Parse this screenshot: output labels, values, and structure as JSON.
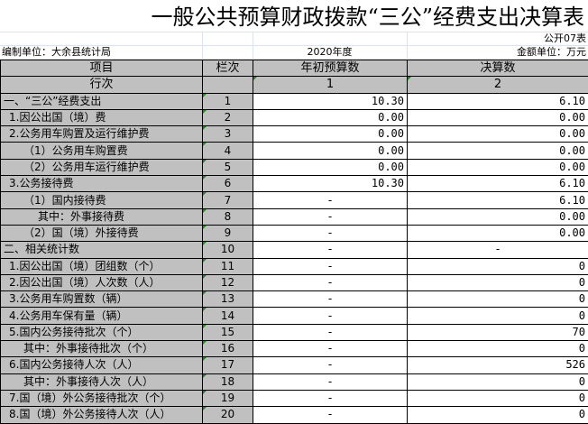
{
  "title": "一般公共预算财政拨款“三公”经费支出决算表",
  "form_code": "公开07表",
  "unit_label": "编制单位：大余县统计局",
  "year": "2020年度",
  "amount_unit": "金额单位：万元",
  "headers": {
    "item": "项目",
    "col": "栏次",
    "budget": "年初预算数",
    "final": "决算数"
  },
  "row_index": {
    "label": "行次",
    "budget": "1",
    "final": "2"
  },
  "rows": [
    {
      "item": "一、“三公”经费支出",
      "no": "1",
      "budget": "10.30",
      "final": "6.10"
    },
    {
      "item": "1.因公出国（境）费",
      "no": "2",
      "budget": "0.00",
      "final": "0.00"
    },
    {
      "item": "2.公务用车购置及运行维护费",
      "no": "3",
      "budget": "0.00",
      "final": "0.00"
    },
    {
      "item": "（1）公务用车购置费",
      "no": "4",
      "budget": "0.00",
      "final": "0.00"
    },
    {
      "item": "（2）公务用车运行维护费",
      "no": "5",
      "budget": "0.00",
      "final": "0.00"
    },
    {
      "item": "3.公务接待费",
      "no": "6",
      "budget": "10.30",
      "final": "6.10"
    },
    {
      "item": "（1）国内接待费",
      "no": "7",
      "budget": "-",
      "final": "6.10"
    },
    {
      "item": "其中：外事接待费",
      "no": "8",
      "budget": "-",
      "final": "0.00"
    },
    {
      "item": "（2）国（境）外接待费",
      "no": "9",
      "budget": "-",
      "final": "0.00"
    },
    {
      "item": "二、相关统计数",
      "no": "10",
      "budget": "-",
      "final": "-"
    },
    {
      "item": "1.因公出国（境）团组数（个）",
      "no": "11",
      "budget": "-",
      "final": "0"
    },
    {
      "item": "2.因公出国（境）人次数（人）",
      "no": "12",
      "budget": "-",
      "final": "0"
    },
    {
      "item": "3.公务用车购置数（辆）",
      "no": "13",
      "budget": "-",
      "final": "0"
    },
    {
      "item": "4.公务用车保有量（辆）",
      "no": "14",
      "budget": "-",
      "final": "0"
    },
    {
      "item": "5.国内公务接待批次（个）",
      "no": "15",
      "budget": "-",
      "final": "70"
    },
    {
      "item": "其中：外事接待批次（个）",
      "no": "16",
      "budget": "-",
      "final": "0"
    },
    {
      "item": "6.国内公务接待人次（人）",
      "no": "17",
      "budget": "-",
      "final": "526"
    },
    {
      "item": "其中：外事接待人次（人）",
      "no": "18",
      "budget": "-",
      "final": "0"
    },
    {
      "item": "7.国（境）外公务接待批次（个）",
      "no": "19",
      "budget": "-",
      "final": "0"
    },
    {
      "item": "8.国（境）外公务接待人次（人）",
      "no": "20",
      "budget": "-",
      "final": "0"
    }
  ]
}
